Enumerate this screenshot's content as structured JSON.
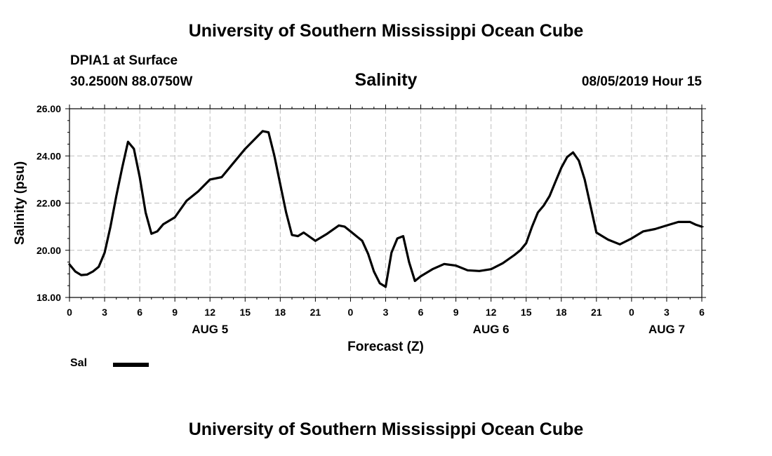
{
  "header": {
    "title": "University of Southern Mississippi Ocean Cube",
    "station": "DPIA1 at Surface",
    "coordinates": "30.2500N 88.0750W",
    "chart_title": "Salinity",
    "timestamp": "08/05/2019 Hour 15"
  },
  "footer": {
    "title": "University of Southern Mississippi Ocean Cube"
  },
  "legend": {
    "label": "Sal",
    "color": "#000000"
  },
  "chart_data": {
    "type": "line",
    "title": "Salinity",
    "xlabel": "Forecast (Z)",
    "ylabel": "Salinity (psu)",
    "ylim": [
      18,
      26
    ],
    "yticks": [
      "18.00",
      "20.00",
      "22.00",
      "24.00",
      "26.00"
    ],
    "xlim": [
      0,
      54
    ],
    "xtick_values": [
      0,
      3,
      6,
      9,
      12,
      15,
      18,
      21,
      24,
      27,
      30,
      33,
      36,
      39,
      42,
      45,
      48,
      51,
      54
    ],
    "xtick_labels": [
      "0",
      "3",
      "6",
      "9",
      "12",
      "15",
      "18",
      "21",
      "0",
      "3",
      "6",
      "9",
      "12",
      "15",
      "18",
      "21",
      "0",
      "3",
      "6"
    ],
    "day_labels": [
      {
        "label": "AUG 5",
        "at": 12
      },
      {
        "label": "AUG 6",
        "at": 36
      },
      {
        "label": "AUG 7",
        "at": 51
      }
    ],
    "grid": true,
    "legend_position": "bottom-left",
    "series": [
      {
        "name": "Sal",
        "color": "#000000",
        "x": [
          0,
          0.5,
          1,
          1.5,
          2,
          2.5,
          3,
          3.5,
          4,
          4.5,
          5,
          5.5,
          6,
          6.5,
          7,
          7.5,
          8,
          9,
          10,
          11,
          12,
          13,
          14,
          15,
          16,
          16.5,
          17,
          17.5,
          18,
          18.5,
          19,
          19.5,
          20,
          21,
          22,
          23,
          23.5,
          24,
          25,
          25.5,
          26,
          26.5,
          27,
          27.5,
          28,
          28.5,
          29,
          29.5,
          30,
          31,
          32,
          33,
          34,
          35,
          36,
          37,
          38,
          38.5,
          39,
          39.5,
          40,
          40.5,
          41,
          41.5,
          42,
          42.5,
          43,
          43.5,
          44,
          45,
          45.5,
          46,
          47,
          48,
          49,
          50,
          51,
          52,
          53,
          53.5,
          54
        ],
        "y": [
          19.4,
          19.1,
          18.95,
          18.97,
          19.1,
          19.3,
          19.9,
          21.0,
          22.3,
          23.5,
          24.6,
          24.3,
          23.1,
          21.6,
          20.7,
          20.8,
          21.1,
          21.4,
          22.1,
          22.5,
          23.0,
          23.1,
          23.7,
          24.3,
          24.8,
          25.05,
          25.0,
          24.0,
          22.8,
          21.6,
          20.65,
          20.6,
          20.75,
          20.4,
          20.7,
          21.05,
          21.0,
          20.8,
          20.4,
          19.85,
          19.1,
          18.6,
          18.45,
          19.9,
          20.5,
          20.6,
          19.5,
          18.7,
          18.9,
          19.2,
          19.42,
          19.35,
          19.15,
          19.12,
          19.2,
          19.45,
          19.8,
          20.0,
          20.3,
          21.0,
          21.6,
          21.9,
          22.3,
          22.9,
          23.5,
          23.95,
          24.15,
          23.8,
          23.0,
          20.75,
          20.6,
          20.45,
          20.25,
          20.5,
          20.8,
          20.9,
          21.05,
          21.2,
          21.2,
          21.08,
          21.0
        ]
      }
    ]
  }
}
